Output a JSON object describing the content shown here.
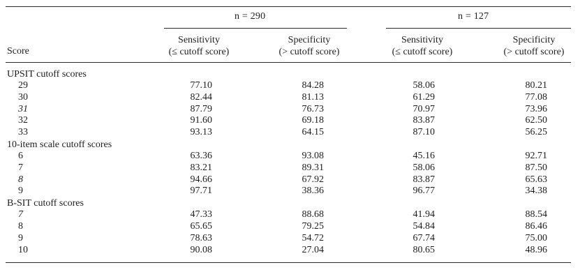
{
  "table": {
    "score_header": "Score",
    "groups": [
      {
        "label": "n = 290"
      },
      {
        "label": "n = 127"
      }
    ],
    "columns": [
      {
        "line1": "Sensitivity",
        "line2": "(≤ cutoff score)"
      },
      {
        "line1": "Specificity",
        "line2": "(> cutoff score)"
      },
      {
        "line1": "Sensitivity",
        "line2": "(≤ cutoff score)"
      },
      {
        "line1": "Specificity",
        "line2": "(> cutoff score)"
      }
    ],
    "sections": [
      {
        "title": "UPSIT cutoff scores",
        "rows": [
          {
            "score": "29",
            "italic": false,
            "values": [
              "77.10",
              "84.28",
              "58.06",
              "80.21"
            ]
          },
          {
            "score": "30",
            "italic": false,
            "values": [
              "82.44",
              "81.13",
              "61.29",
              "77.08"
            ]
          },
          {
            "score": "31",
            "italic": true,
            "values": [
              "87.79",
              "76.73",
              "70.97",
              "73.96"
            ]
          },
          {
            "score": "32",
            "italic": false,
            "values": [
              "91.60",
              "69.18",
              "83.87",
              "62.50"
            ]
          },
          {
            "score": "33",
            "italic": false,
            "values": [
              "93.13",
              "64.15",
              "87.10",
              "56.25"
            ]
          }
        ]
      },
      {
        "title": "10-item scale cutoff scores",
        "rows": [
          {
            "score": "6",
            "italic": false,
            "values": [
              "63.36",
              "93.08",
              "45.16",
              "92.71"
            ]
          },
          {
            "score": "7",
            "italic": false,
            "values": [
              "83.21",
              "89.31",
              "58.06",
              "87.50"
            ]
          },
          {
            "score": "8",
            "italic": true,
            "values": [
              "94.66",
              "67.92",
              "83.87",
              "65.63"
            ]
          },
          {
            "score": "9",
            "italic": false,
            "values": [
              "97.71",
              "38.36",
              "96.77",
              "34.38"
            ]
          }
        ]
      },
      {
        "title": "B-SIT cutoff scores",
        "rows": [
          {
            "score": "7",
            "italic": true,
            "values": [
              "47.33",
              "88.68",
              "41.94",
              "88.54"
            ]
          },
          {
            "score": "8",
            "italic": false,
            "values": [
              "65.65",
              "79.25",
              "54.84",
              "86.46"
            ]
          },
          {
            "score": "9",
            "italic": false,
            "values": [
              "78.63",
              "54.72",
              "67.74",
              "75.00"
            ]
          },
          {
            "score": "10",
            "italic": false,
            "values": [
              "90.08",
              "27.04",
              "80.65",
              "48.96"
            ]
          }
        ]
      }
    ]
  }
}
